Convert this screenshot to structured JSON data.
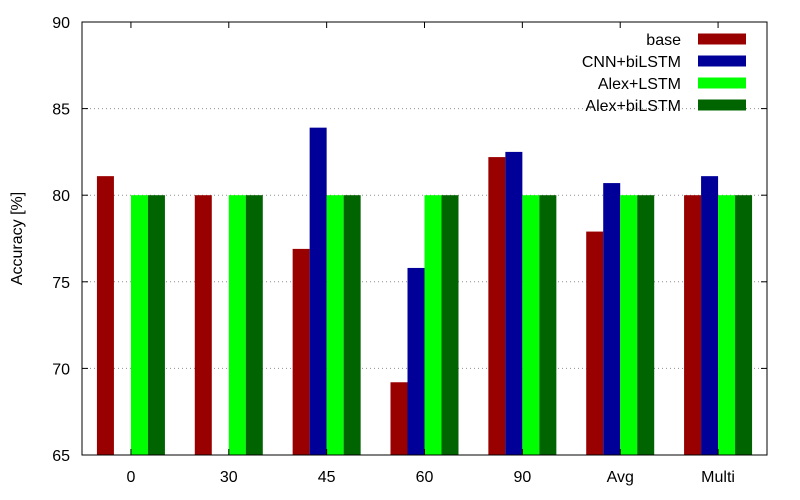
{
  "chart_data": {
    "type": "bar",
    "title": "",
    "xlabel": "",
    "ylabel": "Accuracy [%]",
    "ylim": [
      65,
      90
    ],
    "yticks": [
      65,
      70,
      75,
      80,
      85,
      90
    ],
    "grid": "horizontal-dotted",
    "legend_position": "top-right",
    "categories": [
      "0",
      "30",
      "45",
      "60",
      "90",
      "Avg",
      "Multi"
    ],
    "series": [
      {
        "name": "base",
        "color": "#990000",
        "values": [
          81.1,
          80.0,
          76.9,
          69.2,
          82.2,
          77.9,
          80.0
        ]
      },
      {
        "name": "CNN+biLSTM",
        "color": "#000099",
        "values": [
          null,
          null,
          83.9,
          75.8,
          82.5,
          80.7,
          81.1
        ]
      },
      {
        "name": "Alex+LSTM",
        "color": "#00ff00",
        "values": [
          80.0,
          80.0,
          80.0,
          80.0,
          80.0,
          80.0,
          80.0
        ]
      },
      {
        "name": "Alex+biLSTM",
        "color": "#006400",
        "values": [
          80.0,
          80.0,
          80.0,
          80.0,
          80.0,
          80.0,
          80.0
        ]
      }
    ]
  }
}
